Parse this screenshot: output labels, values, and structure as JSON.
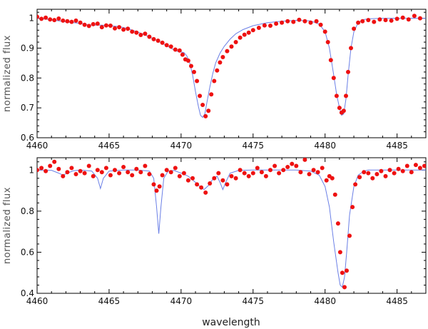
{
  "chart_data": [
    {
      "type": "line",
      "ylabel": "normalized flux",
      "xlabel": "",
      "xlim": [
        4460,
        4487
      ],
      "ylim": [
        0.6,
        1.03
      ],
      "xticks": [
        4460,
        4465,
        4470,
        4475,
        4480,
        4485
      ],
      "yticks": [
        0.6,
        0.7,
        0.8,
        0.9,
        1.0
      ],
      "ytick_labels": [
        "0.6",
        "0.7",
        "0.8",
        "0.9",
        "1"
      ],
      "grid": false,
      "model_color": "#6a7fe6",
      "data_color": "#ee1111",
      "series": [
        {
          "kind": "model",
          "x": [
            4460.0,
            4461.0,
            4462.0,
            4463.0,
            4463.5,
            4464.0,
            4464.5,
            4465.0,
            4465.5,
            4466.0,
            4466.5,
            4467.0,
            4467.5,
            4468.0,
            4468.5,
            4469.0,
            4469.5,
            4469.8,
            4470.0,
            4470.2,
            4470.4,
            4470.6,
            4470.8,
            4471.0,
            4471.2,
            4471.35,
            4471.5,
            4471.65,
            4471.8,
            4472.0,
            4472.2,
            4472.4,
            4472.7,
            4473.0,
            4473.4,
            4473.8,
            4474.3,
            4475.0,
            4476.0,
            4477.0,
            4478.0,
            4479.0,
            4479.6,
            4480.0,
            4480.3,
            4480.6,
            4480.8,
            4481.0,
            4481.15,
            4481.3,
            4481.45,
            4481.6,
            4481.8,
            4482.0,
            4482.3,
            4482.6,
            4483.0,
            4484.0,
            4485.0,
            4486.0,
            4487.0
          ],
          "y": [
            1.0,
            0.995,
            0.988,
            0.983,
            0.978,
            0.977,
            0.977,
            0.975,
            0.973,
            0.969,
            0.962,
            0.954,
            0.944,
            0.933,
            0.921,
            0.908,
            0.894,
            0.888,
            0.887,
            0.885,
            0.874,
            0.85,
            0.81,
            0.755,
            0.705,
            0.675,
            0.668,
            0.68,
            0.72,
            0.77,
            0.815,
            0.85,
            0.883,
            0.906,
            0.93,
            0.948,
            0.962,
            0.975,
            0.985,
            0.99,
            0.993,
            0.991,
            0.98,
            0.955,
            0.9,
            0.81,
            0.745,
            0.7,
            0.675,
            0.68,
            0.73,
            0.81,
            0.9,
            0.955,
            0.985,
            0.995,
            0.998,
            1.0,
            1.0,
            1.0,
            1.0
          ]
        },
        {
          "kind": "observed",
          "x": [
            4460.0,
            4460.3,
            4460.6,
            4460.9,
            4461.2,
            4461.5,
            4461.8,
            4462.1,
            4462.4,
            4462.7,
            4463.0,
            4463.3,
            4463.6,
            4463.9,
            4464.2,
            4464.5,
            4464.8,
            4465.1,
            4465.4,
            4465.7,
            4466.0,
            4466.3,
            4466.6,
            4466.9,
            4467.2,
            4467.5,
            4467.8,
            4468.1,
            4468.4,
            4468.7,
            4469.0,
            4469.3,
            4469.6,
            4469.9,
            4470.1,
            4470.3,
            4470.5,
            4470.7,
            4470.9,
            4471.1,
            4471.3,
            4471.5,
            4471.7,
            4471.9,
            4472.1,
            4472.3,
            4472.5,
            4472.7,
            4472.9,
            4473.2,
            4473.5,
            4473.8,
            4474.1,
            4474.4,
            4474.7,
            4475.0,
            4475.4,
            4475.8,
            4476.2,
            4476.6,
            4477.0,
            4477.4,
            4477.8,
            4478.2,
            4478.6,
            4479.0,
            4479.4,
            4479.7,
            4480.0,
            4480.2,
            4480.4,
            4480.6,
            4480.8,
            4481.0,
            4481.15,
            4481.3,
            4481.45,
            4481.6,
            4481.8,
            4482.0,
            4482.3,
            4482.6,
            4483.0,
            4483.4,
            4483.8,
            4484.2,
            4484.6,
            4485.0,
            4485.4,
            4485.8,
            4486.2,
            4486.6
          ],
          "y": [
            1.005,
            0.998,
            1.002,
            0.996,
            0.994,
            0.999,
            0.992,
            0.99,
            0.988,
            0.992,
            0.985,
            0.978,
            0.974,
            0.98,
            0.982,
            0.97,
            0.976,
            0.975,
            0.966,
            0.97,
            0.962,
            0.965,
            0.955,
            0.952,
            0.944,
            0.948,
            0.938,
            0.93,
            0.925,
            0.918,
            0.91,
            0.905,
            0.895,
            0.892,
            0.878,
            0.862,
            0.858,
            0.84,
            0.82,
            0.79,
            0.74,
            0.71,
            0.672,
            0.69,
            0.745,
            0.79,
            0.825,
            0.852,
            0.87,
            0.89,
            0.905,
            0.92,
            0.935,
            0.945,
            0.952,
            0.96,
            0.968,
            0.976,
            0.975,
            0.982,
            0.985,
            0.99,
            0.988,
            0.995,
            0.99,
            0.985,
            0.99,
            0.978,
            0.955,
            0.92,
            0.86,
            0.8,
            0.74,
            0.7,
            0.684,
            0.69,
            0.74,
            0.82,
            0.9,
            0.965,
            0.985,
            0.99,
            0.994,
            0.988,
            0.996,
            0.994,
            0.992,
            0.998,
            1.002,
            0.996,
            1.008,
            1.0
          ]
        }
      ]
    },
    {
      "type": "line",
      "ylabel": "normalized flux",
      "xlabel": "wavelength",
      "xlim": [
        4460,
        4487
      ],
      "ylim": [
        0.4,
        1.06
      ],
      "xticks": [
        4460,
        4465,
        4470,
        4475,
        4480,
        4485
      ],
      "yticks": [
        0.4,
        0.6,
        0.8,
        1.0
      ],
      "ytick_labels": [
        "0.4",
        "0.6",
        "0.8",
        "1"
      ],
      "grid": false,
      "model_color": "#6a7fe6",
      "data_color": "#ee1111",
      "series": [
        {
          "kind": "model",
          "x": [
            4460.0,
            4461.0,
            4461.5,
            4461.8,
            4462.1,
            4462.5,
            4463.0,
            4463.8,
            4464.2,
            4464.4,
            4464.6,
            4465.0,
            4466.0,
            4467.0,
            4467.8,
            4468.1,
            4468.3,
            4468.45,
            4468.6,
            4468.8,
            4469.1,
            4469.5,
            4470.0,
            4470.5,
            4471.0,
            4471.3,
            4471.6,
            4471.9,
            4472.2,
            4472.5,
            4472.7,
            4472.9,
            4473.1,
            4473.4,
            4474.0,
            4475.0,
            4476.0,
            4477.0,
            4478.0,
            4479.0,
            4479.6,
            4480.0,
            4480.3,
            4480.6,
            4480.9,
            4481.05,
            4481.2,
            4481.35,
            4481.5,
            4481.7,
            4482.0,
            4482.3,
            4482.7,
            4483.0,
            4484.0,
            4485.0,
            4486.0,
            4487.0
          ],
          "y": [
            1.0,
            0.999,
            0.985,
            0.975,
            0.985,
            0.996,
            1.0,
            0.995,
            0.96,
            0.91,
            0.96,
            0.995,
            1.0,
            1.0,
            0.995,
            0.96,
            0.82,
            0.69,
            0.82,
            0.96,
            0.995,
            0.998,
            0.985,
            0.97,
            0.94,
            0.92,
            0.905,
            0.925,
            0.955,
            0.97,
            0.94,
            0.905,
            0.94,
            0.985,
            0.998,
            1.0,
            1.0,
            1.0,
            1.0,
            0.995,
            0.975,
            0.92,
            0.82,
            0.65,
            0.5,
            0.44,
            0.43,
            0.48,
            0.6,
            0.78,
            0.92,
            0.975,
            0.995,
            1.0,
            1.0,
            1.0,
            1.0,
            1.0
          ]
        },
        {
          "kind": "observed",
          "x": [
            4460.0,
            4460.3,
            4460.6,
            4460.9,
            4461.2,
            4461.5,
            4461.8,
            4462.1,
            4462.4,
            4462.7,
            4463.0,
            4463.3,
            4463.6,
            4463.9,
            4464.2,
            4464.5,
            4464.8,
            4465.1,
            4465.4,
            4465.7,
            4466.0,
            4466.3,
            4466.6,
            4466.9,
            4467.2,
            4467.5,
            4467.8,
            4468.1,
            4468.3,
            4468.5,
            4468.7,
            4469.0,
            4469.3,
            4469.6,
            4469.9,
            4470.2,
            4470.5,
            4470.8,
            4471.1,
            4471.4,
            4471.7,
            4472.0,
            4472.3,
            4472.6,
            4472.9,
            4473.2,
            4473.5,
            4473.8,
            4474.1,
            4474.4,
            4474.7,
            4475.0,
            4475.3,
            4475.6,
            4475.9,
            4476.2,
            4476.5,
            4476.8,
            4477.1,
            4477.4,
            4477.7,
            4478.0,
            4478.3,
            4478.6,
            4478.9,
            4479.2,
            4479.5,
            4479.8,
            4480.1,
            4480.3,
            4480.5,
            4480.7,
            4480.9,
            4481.05,
            4481.2,
            4481.35,
            4481.5,
            4481.7,
            4481.9,
            4482.1,
            4482.4,
            4482.7,
            4483.0,
            4483.3,
            4483.6,
            4483.9,
            4484.2,
            4484.5,
            4484.8,
            4485.1,
            4485.4,
            4485.7,
            4486.0,
            4486.3,
            4486.6,
            4486.9
          ],
          "y": [
            1.0,
            1.01,
            0.995,
            1.02,
            1.04,
            1.005,
            0.97,
            0.99,
            1.01,
            0.98,
            0.995,
            0.985,
            1.02,
            0.97,
            1.0,
            0.99,
            1.01,
            0.975,
            1.0,
            0.985,
            1.015,
            0.99,
            0.975,
            1.005,
            0.99,
            1.02,
            0.98,
            0.93,
            0.9,
            0.92,
            0.975,
            1.0,
            0.99,
            1.01,
            0.97,
            0.985,
            0.95,
            0.96,
            0.93,
            0.915,
            0.89,
            0.935,
            0.96,
            0.985,
            0.95,
            0.93,
            0.97,
            0.96,
            1.0,
            0.985,
            0.97,
            0.985,
            1.01,
            0.99,
            0.97,
            1.0,
            1.02,
            0.985,
            1.0,
            1.015,
            1.03,
            1.02,
            0.99,
            1.05,
            0.98,
            1.0,
            0.99,
            1.01,
            0.95,
            0.97,
            0.96,
            0.88,
            0.74,
            0.6,
            0.5,
            0.43,
            0.51,
            0.68,
            0.82,
            0.93,
            0.965,
            0.99,
            0.985,
            0.96,
            0.98,
            0.995,
            0.97,
            1.0,
            0.985,
            1.005,
            0.995,
            1.02,
            0.99,
            1.025,
            1.01,
            1.02
          ]
        }
      ]
    }
  ]
}
